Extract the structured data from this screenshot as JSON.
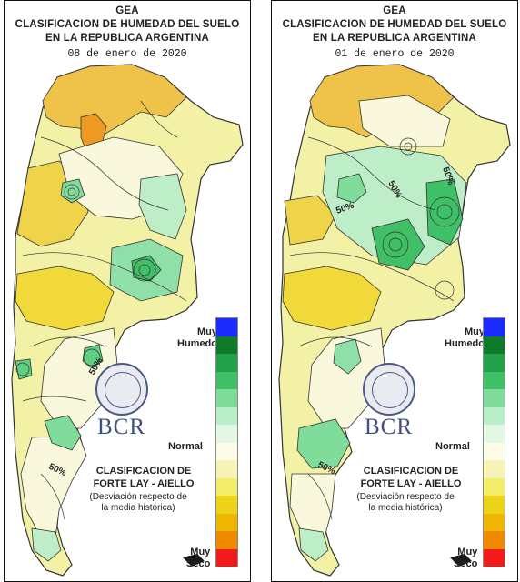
{
  "panels": [
    {
      "id": "left",
      "title_line1": "GEA",
      "title_line2": "CLASIFICACION DE HUMEDAD DEL SUELO",
      "title_line3": "EN LA REPUBLICA ARGENTINA",
      "date": "08 de enero de 2020",
      "contour_labels": [
        "50%",
        "50%"
      ]
    },
    {
      "id": "right",
      "title_line1": "GEA",
      "title_line2": "CLASIFICACION DE HUMEDAD DEL SUELO",
      "title_line3": "EN LA REPUBLICA ARGENTINA",
      "date": "01 de enero de 2020",
      "contour_labels": [
        "50%",
        "50%",
        "50%",
        "50%"
      ]
    }
  ],
  "legend": {
    "top_label_1": "Muy",
    "top_label_2": "Humedo",
    "mid_label": "Normal",
    "bottom_label_1": "Muy",
    "bottom_label_2": "Seco",
    "title_1": "CLASIFICACION DE",
    "title_2": "FORTE LAY - AIELLO",
    "note_1": "(Desviación respecto de",
    "note_2": "la media histórica)",
    "colors": [
      "#1c2cff",
      "#0f7a2a",
      "#22a04a",
      "#3fbf66",
      "#7fdc9a",
      "#b9eec8",
      "#e2f7e4",
      "#fbfbe6",
      "#f6f4b4",
      "#f2ec6a",
      "#ecd218",
      "#eeb600",
      "#ef8a00",
      "#f21a1a"
    ]
  },
  "logo": {
    "text": "BCR",
    "seal_text": "BOLSA DE COMERCIO DE ROSARIO"
  }
}
